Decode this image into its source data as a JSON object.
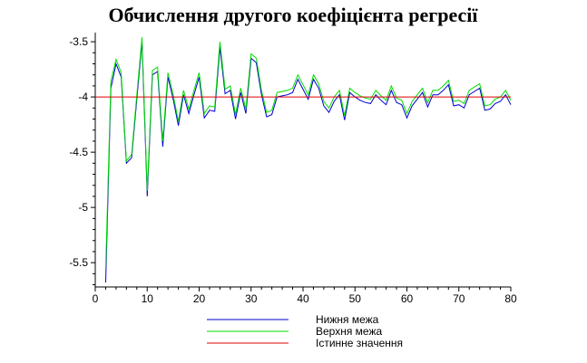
{
  "chart_data": {
    "type": "line",
    "title": "Обчислення другого коефіцієнта регресії",
    "xlabel": "",
    "ylabel": "",
    "xlim": [
      0,
      80
    ],
    "ylim": [
      -5.72,
      -3.45
    ],
    "x_ticks": [
      0,
      10,
      20,
      30,
      40,
      50,
      60,
      70,
      80
    ],
    "y_ticks": [
      -3.5,
      -4,
      -4.5,
      -5,
      -5.5
    ],
    "y_tick_labels": [
      "-3.5",
      "-4",
      "-4.5",
      "-5",
      "-5.5"
    ],
    "grid": false,
    "legend_position": "bottom",
    "x": [
      2,
      3,
      4,
      5,
      6,
      7,
      8,
      9,
      10,
      11,
      12,
      13,
      14,
      15,
      16,
      17,
      18,
      19,
      20,
      21,
      22,
      23,
      24,
      25,
      26,
      27,
      28,
      29,
      30,
      31,
      32,
      33,
      34,
      35,
      36,
      37,
      38,
      39,
      40,
      41,
      42,
      43,
      44,
      45,
      46,
      47,
      48,
      49,
      50,
      51,
      52,
      53,
      54,
      55,
      56,
      57,
      58,
      59,
      60,
      61,
      62,
      63,
      64,
      65,
      66,
      67,
      68,
      69,
      70,
      71,
      72,
      73,
      74,
      75,
      76,
      77,
      78,
      79,
      80
    ],
    "series": [
      {
        "name": "Нижня межа",
        "color": "#0000cc",
        "values": [
          -5.68,
          -3.92,
          -3.7,
          -3.82,
          -4.6,
          -4.55,
          -4.02,
          -3.5,
          -4.9,
          -3.8,
          -3.77,
          -4.45,
          -3.82,
          -4.02,
          -4.26,
          -3.98,
          -4.15,
          -3.98,
          -3.82,
          -4.19,
          -4.12,
          -4.13,
          -3.55,
          -3.97,
          -3.94,
          -4.2,
          -3.96,
          -4.15,
          -3.65,
          -3.69,
          -3.98,
          -4.18,
          -4.16,
          -4.0,
          -3.99,
          -3.98,
          -3.96,
          -3.84,
          -3.93,
          -4.02,
          -3.84,
          -3.92,
          -4.08,
          -4.14,
          -4.04,
          -3.98,
          -4.21,
          -3.96,
          -4.0,
          -4.03,
          -4.05,
          -4.06,
          -3.98,
          -4.03,
          -4.07,
          -3.94,
          -4.05,
          -4.07,
          -4.19,
          -4.08,
          -4.02,
          -3.96,
          -4.09,
          -3.98,
          -3.98,
          -3.94,
          -3.89,
          -4.08,
          -4.07,
          -4.1,
          -3.98,
          -3.95,
          -3.92,
          -4.12,
          -4.11,
          -4.06,
          -4.04,
          -3.98,
          -4.07
        ]
      },
      {
        "name": "Верхня межа",
        "color": "#00dd00",
        "values": [
          -5.55,
          -3.86,
          -3.66,
          -3.78,
          -4.58,
          -4.52,
          -3.98,
          -3.46,
          -4.85,
          -3.76,
          -3.73,
          -4.4,
          -3.78,
          -3.98,
          -4.22,
          -3.94,
          -4.11,
          -3.94,
          -3.78,
          -4.15,
          -4.08,
          -4.09,
          -3.5,
          -3.93,
          -3.9,
          -4.16,
          -3.92,
          -4.11,
          -3.61,
          -3.65,
          -3.94,
          -4.14,
          -4.12,
          -3.96,
          -3.95,
          -3.94,
          -3.92,
          -3.8,
          -3.89,
          -3.98,
          -3.8,
          -3.88,
          -4.04,
          -4.1,
          -4.0,
          -3.94,
          -4.17,
          -3.92,
          -3.96,
          -3.99,
          -4.01,
          -4.02,
          -3.94,
          -3.99,
          -4.03,
          -3.9,
          -4.01,
          -4.03,
          -4.15,
          -4.04,
          -3.98,
          -3.92,
          -4.05,
          -3.94,
          -3.94,
          -3.9,
          -3.85,
          -4.04,
          -4.03,
          -4.06,
          -3.94,
          -3.91,
          -3.88,
          -4.08,
          -4.07,
          -4.02,
          -4.0,
          -3.94,
          -4.03
        ]
      },
      {
        "name": "Істинне значення",
        "color": "#dd0000",
        "constant": -4.0
      }
    ]
  }
}
